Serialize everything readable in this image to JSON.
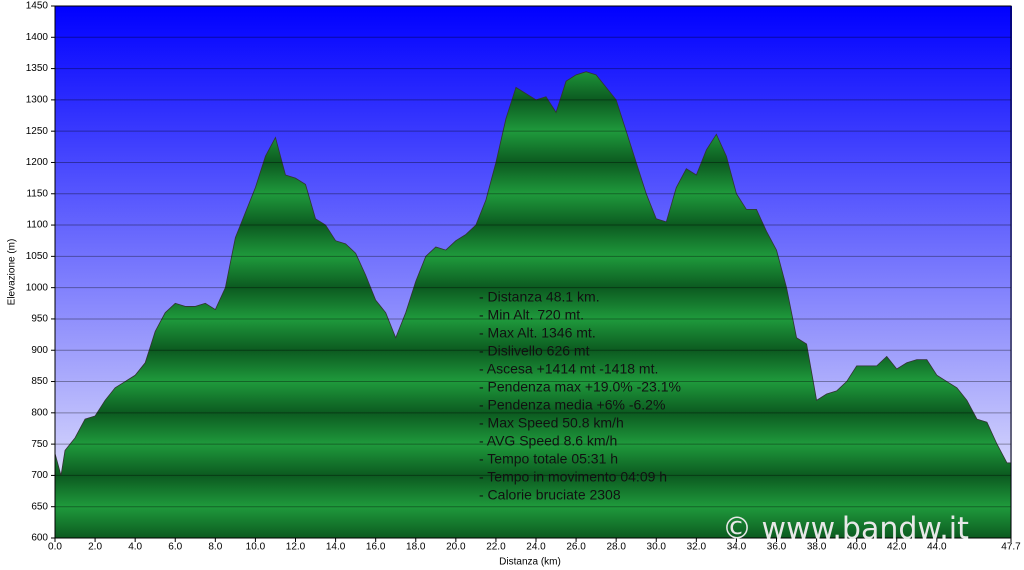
{
  "chart_data": {
    "type": "area",
    "x_label": "Distanza  (km)",
    "y_label": "Elevazione (m)",
    "x": [
      0,
      0.3,
      0.5,
      1,
      1.5,
      2,
      2.5,
      3,
      3.5,
      4,
      4.5,
      5,
      5.5,
      6,
      6.5,
      7,
      7.5,
      8,
      8.5,
      9,
      9.5,
      10,
      10.5,
      11,
      11.5,
      12,
      12.5,
      13,
      13.5,
      14,
      14.5,
      15,
      15.5,
      16,
      16.5,
      17,
      17.5,
      18,
      18.5,
      19,
      19.5,
      20,
      20.5,
      21,
      21.5,
      22,
      22.5,
      23,
      23.5,
      24,
      24.5,
      25,
      25.5,
      26,
      26.5,
      27,
      27.5,
      28,
      28.5,
      29,
      29.5,
      30,
      30.5,
      31,
      31.5,
      32,
      32.5,
      33,
      33.5,
      34,
      34.5,
      35,
      35.5,
      36,
      36.5,
      37,
      37.5,
      38,
      38.5,
      39,
      39.5,
      40,
      40.5,
      41,
      41.5,
      42,
      42.5,
      43,
      43.5,
      44,
      44.5,
      45,
      45.5,
      46,
      46.5,
      47,
      47.5,
      47.7
    ],
    "series": [
      {
        "color": "#1f9a3c",
        "values": [
          735,
          700,
          740,
          760,
          790,
          795,
          820,
          840,
          850,
          860,
          880,
          930,
          960,
          975,
          970,
          970,
          975,
          965,
          1000,
          1080,
          1120,
          1160,
          1210,
          1240,
          1180,
          1175,
          1165,
          1110,
          1100,
          1075,
          1070,
          1055,
          1020,
          980,
          960,
          920,
          960,
          1010,
          1050,
          1065,
          1060,
          1075,
          1085,
          1100,
          1140,
          1200,
          1270,
          1320,
          1310,
          1300,
          1305,
          1280,
          1330,
          1340,
          1345,
          1340,
          1320,
          1300,
          1250,
          1200,
          1150,
          1110,
          1105,
          1160,
          1190,
          1180,
          1220,
          1245,
          1210,
          1150,
          1125,
          1125,
          1090,
          1060,
          1000,
          920,
          910,
          820,
          830,
          835,
          850,
          875,
          875,
          875,
          890,
          870,
          880,
          885,
          885,
          860,
          850,
          840,
          820,
          790,
          785,
          750,
          720,
          720
        ]
      }
    ],
    "xlim": [
      0,
      47.7
    ],
    "ylim": [
      600,
      1450
    ],
    "xticks": [
      {
        "value": 0,
        "label": "0.0"
      },
      {
        "value": 2,
        "label": "2.0"
      },
      {
        "value": 4,
        "label": "4.0"
      },
      {
        "value": 6,
        "label": "6.0"
      },
      {
        "value": 8,
        "label": "8.0"
      },
      {
        "value": 10,
        "label": "10.0"
      },
      {
        "value": 12,
        "label": "12.0"
      },
      {
        "value": 14,
        "label": "14.0"
      },
      {
        "value": 16,
        "label": "16.0"
      },
      {
        "value": 18,
        "label": "18.0"
      },
      {
        "value": 20,
        "label": "20.0"
      },
      {
        "value": 22,
        "label": "22.0"
      },
      {
        "value": 24,
        "label": "24.0"
      },
      {
        "value": 26,
        "label": "26.0"
      },
      {
        "value": 28,
        "label": "28.0"
      },
      {
        "value": 30,
        "label": "30.0"
      },
      {
        "value": 32,
        "label": "32.0"
      },
      {
        "value": 34,
        "label": "34.0"
      },
      {
        "value": 36,
        "label": "36.0"
      },
      {
        "value": 38,
        "label": "38.0"
      },
      {
        "value": 40,
        "label": "40.0"
      },
      {
        "value": 42,
        "label": "42.0"
      },
      {
        "value": 44,
        "label": "44.0"
      },
      47.7
    ],
    "yticks": [
      600,
      650,
      700,
      750,
      800,
      850,
      900,
      950,
      1000,
      1050,
      1100,
      1150,
      1200,
      1250,
      1300,
      1350,
      1400,
      1450
    ],
    "grid": true,
    "annotations": [
      "- Distanza 48.1 km.",
      "- Min Alt. 720 mt.",
      "- Max Alt. 1346 mt.",
      "- Dislivello 626 mt",
      "- Ascesa +1414 mt -1418 mt.",
      "- Pendenza max +19.0% -23.1%",
      "- Pendenza media +6% -6.2%",
      "- Max Speed 50.8 km/h",
      "- AVG Speed 8.6 km/h",
      "- Tempo totale 05:31 h",
      "- Tempo in movimento 04:09 h",
      "- Calorie bruciate 2308"
    ],
    "watermark": "© www.bandw.it"
  }
}
